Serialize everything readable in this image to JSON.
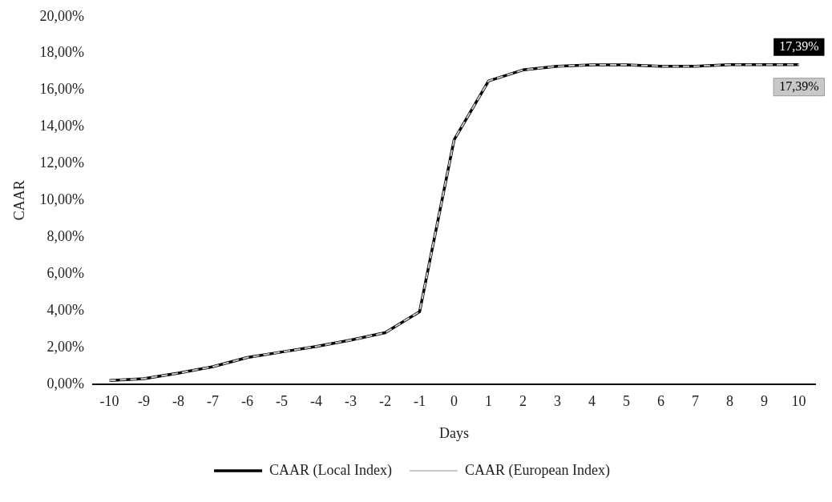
{
  "chart_data": {
    "type": "line",
    "xlabel": "Days",
    "ylabel": "CAAR",
    "categories": [
      "-10",
      "-9",
      "-8",
      "-7",
      "-6",
      "-5",
      "-4",
      "-3",
      "-2",
      "-1",
      "0",
      "1",
      "2",
      "3",
      "4",
      "5",
      "6",
      "7",
      "8",
      "9",
      "10"
    ],
    "series": [
      {
        "name": "CAAR (Local Index)",
        "color": "#000000",
        "line_style": "solid",
        "values": [
          0.2,
          0.3,
          0.6,
          0.95,
          1.45,
          1.75,
          2.05,
          2.4,
          2.8,
          3.95,
          13.3,
          16.5,
          17.1,
          17.3,
          17.38,
          17.38,
          17.3,
          17.3,
          17.39,
          17.39,
          17.39
        ],
        "value_labels": [
          null,
          null,
          null,
          null,
          null,
          null,
          null,
          null,
          null,
          null,
          null,
          null,
          null,
          null,
          null,
          null,
          null,
          null,
          null,
          null,
          "17,39%"
        ]
      },
      {
        "name": "CAAR (European Index)",
        "color": "#c8c8c8",
        "line_style": "dashed",
        "values": [
          0.2,
          0.3,
          0.6,
          0.95,
          1.45,
          1.75,
          2.05,
          2.4,
          2.8,
          3.95,
          13.3,
          16.5,
          17.1,
          17.3,
          17.38,
          17.38,
          17.3,
          17.3,
          17.39,
          17.39,
          17.39
        ],
        "value_labels": [
          null,
          null,
          null,
          null,
          null,
          null,
          null,
          null,
          null,
          null,
          null,
          null,
          null,
          null,
          null,
          null,
          null,
          null,
          null,
          null,
          "17,39%"
        ]
      }
    ],
    "ylim": [
      0,
      20
    ],
    "yticks": [
      {
        "value": 0,
        "label": "0,00%"
      },
      {
        "value": 2,
        "label": "2,00%"
      },
      {
        "value": 4,
        "label": "4,00%"
      },
      {
        "value": 6,
        "label": "6,00%"
      },
      {
        "value": 8,
        "label": "8,00%"
      },
      {
        "value": 10,
        "label": "10,00%"
      },
      {
        "value": 12,
        "label": "12,00%"
      },
      {
        "value": 14,
        "label": "14,00%"
      },
      {
        "value": 16,
        "label": "16,00%"
      },
      {
        "value": 18,
        "label": "18,00%"
      },
      {
        "value": 20,
        "label": "20,00%"
      }
    ],
    "grid": false,
    "legend": "bottom",
    "marker": "none"
  }
}
